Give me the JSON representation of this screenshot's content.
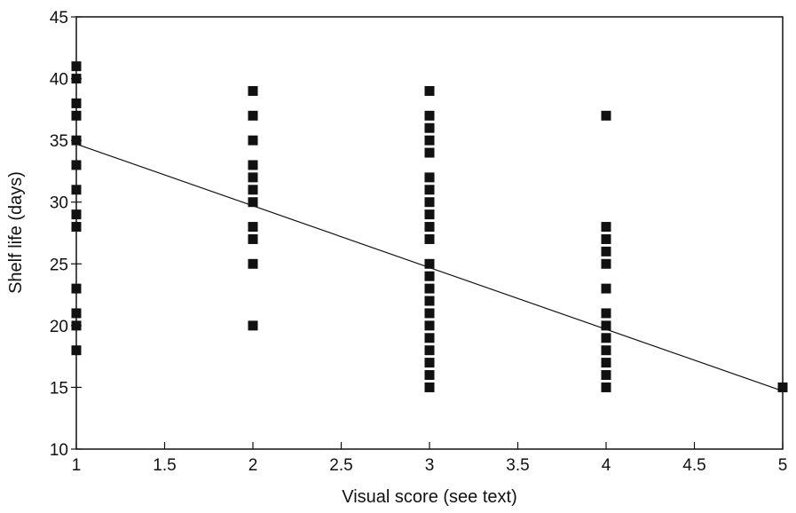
{
  "chart_data": {
    "type": "scatter",
    "xlabel": "Visual score (see text)",
    "ylabel": "Shelf life (days)",
    "xlim": [
      1,
      5
    ],
    "ylim": [
      10,
      45
    ],
    "xticks": [
      1,
      1.5,
      2,
      2.5,
      3,
      3.5,
      4,
      4.5,
      5
    ],
    "xtick_labels": [
      "1",
      "1.5",
      "2",
      "2.5",
      "3",
      "3.5",
      "4",
      "4.5",
      "5"
    ],
    "yticks": [
      10,
      15,
      20,
      25,
      30,
      35,
      40,
      45
    ],
    "ytick_labels": [
      "10",
      "15",
      "20",
      "25",
      "30",
      "35",
      "40",
      "45"
    ],
    "grid": false,
    "marker_color": "#111111",
    "series": [
      {
        "points": [
          {
            "x": 1,
            "y": 41
          },
          {
            "x": 1,
            "y": 40
          },
          {
            "x": 1,
            "y": 38
          },
          {
            "x": 1,
            "y": 37
          },
          {
            "x": 1,
            "y": 35
          },
          {
            "x": 1,
            "y": 33
          },
          {
            "x": 1,
            "y": 31
          },
          {
            "x": 1,
            "y": 29
          },
          {
            "x": 1,
            "y": 28
          },
          {
            "x": 1,
            "y": 23
          },
          {
            "x": 1,
            "y": 21
          },
          {
            "x": 1,
            "y": 20
          },
          {
            "x": 1,
            "y": 18
          },
          {
            "x": 2,
            "y": 39
          },
          {
            "x": 2,
            "y": 37
          },
          {
            "x": 2,
            "y": 35
          },
          {
            "x": 2,
            "y": 33
          },
          {
            "x": 2,
            "y": 32
          },
          {
            "x": 2,
            "y": 31
          },
          {
            "x": 2,
            "y": 30
          },
          {
            "x": 2,
            "y": 28
          },
          {
            "x": 2,
            "y": 27
          },
          {
            "x": 2,
            "y": 25
          },
          {
            "x": 2,
            "y": 20
          },
          {
            "x": 3,
            "y": 39
          },
          {
            "x": 3,
            "y": 37
          },
          {
            "x": 3,
            "y": 36
          },
          {
            "x": 3,
            "y": 35
          },
          {
            "x": 3,
            "y": 34
          },
          {
            "x": 3,
            "y": 32
          },
          {
            "x": 3,
            "y": 31
          },
          {
            "x": 3,
            "y": 30
          },
          {
            "x": 3,
            "y": 29
          },
          {
            "x": 3,
            "y": 28
          },
          {
            "x": 3,
            "y": 27
          },
          {
            "x": 3,
            "y": 25
          },
          {
            "x": 3,
            "y": 24
          },
          {
            "x": 3,
            "y": 23
          },
          {
            "x": 3,
            "y": 22
          },
          {
            "x": 3,
            "y": 21
          },
          {
            "x": 3,
            "y": 20
          },
          {
            "x": 3,
            "y": 19
          },
          {
            "x": 3,
            "y": 18
          },
          {
            "x": 3,
            "y": 17
          },
          {
            "x": 3,
            "y": 16
          },
          {
            "x": 3,
            "y": 15
          },
          {
            "x": 4,
            "y": 37
          },
          {
            "x": 4,
            "y": 28
          },
          {
            "x": 4,
            "y": 27
          },
          {
            "x": 4,
            "y": 26
          },
          {
            "x": 4,
            "y": 25
          },
          {
            "x": 4,
            "y": 23
          },
          {
            "x": 4,
            "y": 21
          },
          {
            "x": 4,
            "y": 20
          },
          {
            "x": 4,
            "y": 19
          },
          {
            "x": 4,
            "y": 18
          },
          {
            "x": 4,
            "y": 17
          },
          {
            "x": 4,
            "y": 16
          },
          {
            "x": 4,
            "y": 15
          },
          {
            "x": 5,
            "y": 15
          }
        ]
      }
    ],
    "trendline": {
      "x": [
        1,
        5
      ],
      "y": [
        34.7,
        14.7
      ]
    }
  }
}
